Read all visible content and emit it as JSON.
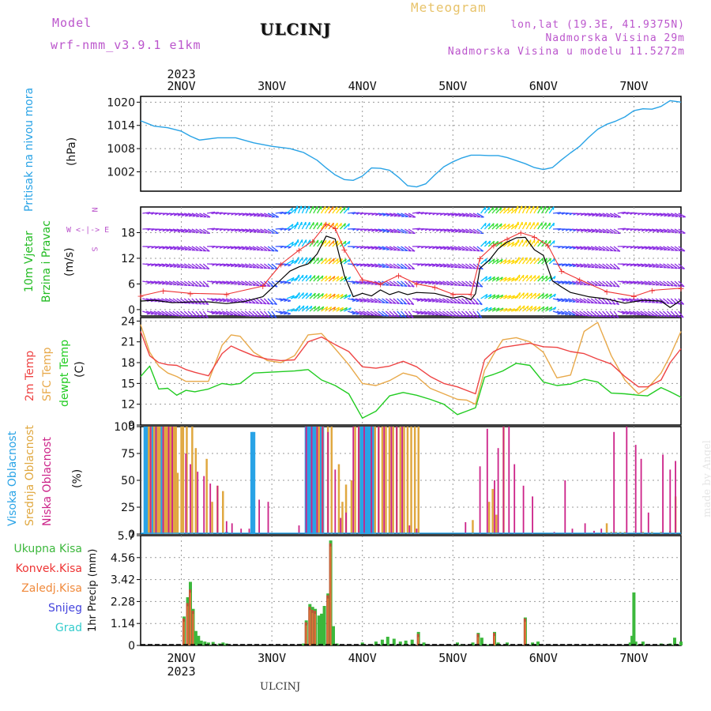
{
  "header": {
    "model_label": "Model",
    "model_name": "wrf-nmm_v3.9.1 e1km",
    "station": "ULCINJ",
    "product": "Meteogram",
    "lonlat": "lon,lat (19.3E, 41.9375N)",
    "altitude": "Nadmorska Visina 29m",
    "model_altitude": "Nadmorska Visina u modelu 11.5272m"
  },
  "footer": {
    "station": "ULCINJ",
    "credit": "made by Angel"
  },
  "colors": {
    "pressure": "#29a3e6",
    "wind_label": "#22bb22",
    "temp": "#ee4444",
    "sfc_temp": "#e8a94a",
    "dewpt": "#22cc22",
    "high_cloud": "#29a3e6",
    "mid_cloud": "#e0a840",
    "low_cloud": "#cc2288",
    "total_precip": "#3cb83c",
    "conv_precip": "#ee3333",
    "strat_precip": "#f08a3c",
    "snow": "#4444dd",
    "graupel": "#33cccc",
    "dir_legend": "#bb55cc"
  },
  "chart_data": [
    {
      "type": "line",
      "panel": "pressure",
      "ylabel_name": "Pritisak na nivou mora",
      "ylabel_unit": "(hPa)",
      "yticks": [
        "1002",
        "1008",
        "1014",
        "1020"
      ],
      "ylim": [
        997,
        1021.5
      ],
      "x_day_ticks": [
        "2NOV",
        "3NOV",
        "4NOV",
        "5NOV",
        "6NOV",
        "7NOV"
      ],
      "x_year": "2023",
      "xlim_days": [
        1.55,
        7.52
      ],
      "grid": true,
      "x": [
        1.55,
        1.7,
        1.85,
        2.0,
        2.1,
        2.2,
        2.4,
        2.6,
        2.8,
        3.0,
        3.2,
        3.35,
        3.5,
        3.6,
        3.7,
        3.8,
        3.9,
        4.0,
        4.1,
        4.2,
        4.3,
        4.4,
        4.5,
        4.6,
        4.7,
        4.8,
        4.9,
        5.0,
        5.1,
        5.2,
        5.3,
        5.4,
        5.5,
        5.6,
        5.7,
        5.8,
        5.9,
        6.0,
        6.1,
        6.2,
        6.3,
        6.4,
        6.5,
        6.6,
        6.7,
        6.8,
        6.9,
        7.0,
        7.1,
        7.2,
        7.3,
        7.4,
        7.52
      ],
      "y": [
        1015.2,
        1013.8,
        1013.4,
        1012.5,
        1011.2,
        1010.2,
        1010.8,
        1010.8,
        1009.5,
        1008.6,
        1008,
        1007,
        1005,
        1003,
        1001.2,
        1000,
        999.8,
        1000.9,
        1003,
        1002.9,
        1002.4,
        1000.6,
        998.4,
        998.1,
        998.9,
        1001.2,
        1003.3,
        1004.6,
        1005.6,
        1006.3,
        1006.3,
        1006.2,
        1006.2,
        1005.7,
        1004.9,
        1004.1,
        1003.1,
        1002.6,
        1003.1,
        1005.1,
        1006.9,
        1008.6,
        1010.9,
        1013,
        1014.3,
        1015.1,
        1016.2,
        1017.8,
        1018.3,
        1018.2,
        1018.9,
        1020.4,
        1020
      ]
    },
    {
      "type": "line",
      "panel": "wind",
      "ylabel_name": "10m Vjetar",
      "ylabel_name2": "Brzina i Pravac",
      "ylabel_unit": "(m/s)",
      "dir_legend_top": "N",
      "dir_legend_left": "W <-|-> E",
      "dir_legend_bottom": "S",
      "yticks": [
        "0",
        "6",
        "12",
        "18"
      ],
      "ylim": [
        -1.5,
        24
      ],
      "series": [
        {
          "role": "speed",
          "x": [
            1.55,
            1.7,
            1.9,
            2.1,
            2.3,
            2.5,
            2.7,
            2.9,
            3.0,
            3.1,
            3.2,
            3.3,
            3.4,
            3.5,
            3.6,
            3.7,
            3.8,
            3.9,
            4.0,
            4.1,
            4.2,
            4.3,
            4.4,
            4.5,
            4.6,
            4.8,
            5.0,
            5.1,
            5.2,
            5.25,
            5.3,
            5.4,
            5.5,
            5.6,
            5.7,
            5.8,
            5.9,
            6.0,
            6.1,
            6.2,
            6.3,
            6.5,
            6.7,
            6.9,
            7.1,
            7.3,
            7.4,
            7.52
          ],
          "y": [
            2,
            2.2,
            1.6,
            1.8,
            1.8,
            1.4,
            1.9,
            3,
            5,
            7,
            9,
            10,
            10.7,
            13,
            17.2,
            16.5,
            8,
            3,
            3.8,
            3.2,
            4.6,
            3.5,
            4.2,
            3.5,
            4,
            3.8,
            2.7,
            3.1,
            2.3,
            3.7,
            9.7,
            11.5,
            14.2,
            15.8,
            16.8,
            16.9,
            14,
            12.7,
            6.7,
            5.3,
            4,
            3,
            2.5,
            1.5,
            2.2,
            2,
            0.5,
            2.2
          ]
        },
        {
          "role": "gust",
          "x": [
            1.55,
            1.8,
            2.1,
            2.5,
            2.9,
            3.1,
            3.3,
            3.45,
            3.6,
            3.7,
            3.8,
            4.0,
            4.2,
            4.4,
            4.6,
            4.8,
            5.0,
            5.2,
            5.3,
            5.45,
            5.6,
            5.75,
            5.9,
            6.05,
            6.2,
            6.4,
            6.7,
            7.0,
            7.2,
            7.52
          ],
          "y": [
            3.2,
            4.4,
            3.8,
            3.6,
            5.5,
            10.6,
            13.9,
            16,
            20,
            19,
            14,
            7,
            6,
            8,
            6,
            5.2,
            3.6,
            3.6,
            12,
            15,
            16.5,
            18,
            17,
            15,
            9,
            7,
            4.2,
            3.1,
            4.5,
            5
          ]
        }
      ],
      "direction_note": "wind direction arrows colored by speed"
    },
    {
      "type": "line",
      "panel": "temperature",
      "labels": [
        "2m Temp",
        "SFC Temp",
        "dewpt Temp"
      ],
      "ylabel_unit": "(C)",
      "yticks": [
        "9",
        "12",
        "15",
        "18",
        "21",
        "24"
      ],
      "ylim": [
        9,
        24.5
      ],
      "x": [
        1.55,
        1.65,
        1.75,
        1.85,
        1.95,
        2.05,
        2.15,
        2.3,
        2.45,
        2.55,
        2.65,
        2.8,
        2.95,
        3.1,
        3.25,
        3.4,
        3.55,
        3.7,
        3.85,
        4.0,
        4.15,
        4.3,
        4.45,
        4.6,
        4.75,
        4.9,
        5.05,
        5.15,
        5.25,
        5.35,
        5.45,
        5.55,
        5.7,
        5.85,
        6.0,
        6.15,
        6.3,
        6.45,
        6.6,
        6.75,
        6.9,
        7.05,
        7.15,
        7.3,
        7.4,
        7.52
      ],
      "series": [
        {
          "name": "2m Temp",
          "values": [
            22.5,
            19,
            18,
            17.7,
            17.6,
            17,
            16.6,
            16.1,
            19.3,
            20.4,
            19.8,
            19,
            18.5,
            18.3,
            18.4,
            21,
            21.7,
            20.6,
            19.6,
            17.4,
            17.2,
            17.5,
            18.2,
            17.4,
            16,
            15,
            14.5,
            14,
            13.5,
            18.4,
            19.6,
            20.2,
            20.5,
            20.8,
            20.3,
            20.2,
            19.6,
            19.3,
            18.5,
            17.8,
            16,
            14.5,
            14.5,
            15.5,
            18,
            20
          ]
        },
        {
          "name": "SFC Temp",
          "values": [
            23.5,
            19.5,
            17.5,
            16.5,
            16,
            15.3,
            15.3,
            15.3,
            20.5,
            22,
            21.8,
            19.5,
            18.3,
            18,
            19,
            22,
            22.2,
            20,
            17.7,
            15,
            14.7,
            15.4,
            16.5,
            16,
            14.3,
            13.5,
            12.7,
            12.6,
            12,
            16.9,
            19.2,
            21.3,
            21.6,
            21,
            19.5,
            15.8,
            16.2,
            22.5,
            23.8,
            19,
            15.5,
            13.5,
            14.3,
            16.5,
            19,
            22.5
          ]
        },
        {
          "name": "dewpt Temp",
          "values": [
            16,
            17.5,
            14.2,
            14.3,
            13.3,
            14,
            13.8,
            14.2,
            15,
            14.8,
            15,
            16.5,
            16.6,
            16.7,
            16.8,
            17,
            15.5,
            14.7,
            13.5,
            10,
            11,
            13.2,
            13.7,
            13.3,
            12.7,
            12,
            10.5,
            11,
            11.5,
            15.9,
            16.3,
            16.8,
            17.9,
            17.6,
            15.2,
            14.7,
            14.9,
            15.6,
            15.2,
            13.6,
            13.5,
            13.3,
            13.2,
            14.4,
            13.8,
            13
          ]
        }
      ]
    },
    {
      "type": "bar",
      "panel": "cloud",
      "labels": [
        "Visoka Oblacnost",
        "Srednja Oblacnost",
        "Niska Oblacnost"
      ],
      "ylabel_unit": "(%)",
      "yticks": [
        "0",
        "25",
        "50",
        "75",
        "100"
      ],
      "ylim": [
        0,
        100
      ],
      "series": [
        {
          "name": "Visoka Oblacnost",
          "x": [
            1.6,
            1.62,
            1.68,
            1.72,
            1.78,
            2.5,
            2.78,
            2.8,
            3.38,
            3.4,
            3.42,
            3.44,
            3.46,
            3.48,
            3.5,
            3.52,
            3.54,
            3.56,
            3.98,
            4.0,
            4.02,
            4.04,
            4.06,
            4.08,
            4.1,
            4.12
          ],
          "values": [
            100,
            100,
            100,
            100,
            100,
            2,
            95,
            95,
            100,
            100,
            100,
            100,
            100,
            100,
            100,
            100,
            100,
            100,
            100,
            100,
            100,
            100,
            100,
            100,
            100,
            100
          ]
        },
        {
          "name": "Srednja Oblacnost",
          "x": [
            1.64,
            1.66,
            1.7,
            1.74,
            1.76,
            1.8,
            1.82,
            1.84,
            1.86,
            1.88,
            1.9,
            1.92,
            1.94,
            1.96,
            2.0,
            2.02,
            2.06,
            2.12,
            2.16,
            2.28,
            2.34,
            2.4,
            2.46,
            3.5,
            3.52,
            3.56,
            3.62,
            3.66,
            3.74,
            3.78,
            3.82,
            3.88,
            3.92,
            3.96,
            4.14,
            4.18,
            4.22,
            4.26,
            4.3,
            4.34,
            4.38,
            4.42,
            4.46,
            4.5,
            4.54,
            4.58,
            4.62,
            5.22,
            5.4,
            5.44,
            5.48,
            5.56,
            6.7,
            6.75,
            6.8,
            6.85,
            6.9,
            7.1,
            7.2,
            7.3,
            7.4,
            7.46
          ],
          "values": [
            100,
            100,
            100,
            100,
            100,
            100,
            100,
            100,
            100,
            100,
            100,
            100,
            100,
            57,
            100,
            100,
            100,
            100,
            80,
            70,
            30,
            45,
            40,
            100,
            100,
            100,
            100,
            100,
            65,
            30,
            46,
            50,
            100,
            100,
            100,
            100,
            100,
            100,
            100,
            100,
            100,
            100,
            100,
            100,
            100,
            100,
            100,
            13,
            30,
            42,
            18,
            100,
            10,
            2,
            2,
            2,
            2,
            2,
            2,
            2,
            3,
            35
          ]
        },
        {
          "name": "Niska Oblacnost",
          "x": [
            1.66,
            1.72,
            1.8,
            1.86,
            1.9,
            2.05,
            2.1,
            2.18,
            2.25,
            2.32,
            2.4,
            2.5,
            2.56,
            2.66,
            2.75,
            2.86,
            2.96,
            3.3,
            3.38,
            3.44,
            3.5,
            3.56,
            3.62,
            3.7,
            3.76,
            3.82,
            3.9,
            3.96,
            4.02,
            4.1,
            4.18,
            4.24,
            4.32,
            4.38,
            4.44,
            4.52,
            4.6,
            5.14,
            5.3,
            5.38,
            5.46,
            5.5,
            5.56,
            5.62,
            5.68,
            5.78,
            5.88,
            6.12,
            6.24,
            6.32,
            6.46,
            6.56,
            6.64,
            6.78,
            6.92,
            7.02,
            7.08,
            7.16,
            7.32,
            7.4,
            7.46
          ],
          "values": [
            100,
            100,
            100,
            100,
            100,
            75,
            65,
            58,
            54,
            47,
            45,
            12,
            10,
            5,
            5,
            32,
            30,
            8,
            100,
            100,
            100,
            100,
            95,
            60,
            15,
            20,
            100,
            100,
            100,
            100,
            100,
            100,
            100,
            100,
            100,
            8,
            5,
            11,
            63,
            98,
            50,
            80,
            100,
            100,
            65,
            45,
            35,
            2,
            50,
            5,
            10,
            3,
            5,
            95,
            100,
            83,
            70,
            20,
            74,
            60,
            68
          ]
        }
      ]
    },
    {
      "type": "bar",
      "panel": "precip",
      "labels": [
        "Ukupna Kisa",
        "Konvek.Kisa",
        "Zaledj.Kisa",
        "Snijeg",
        "Grad"
      ],
      "ylabel_unit": "1hr Precip (mm)",
      "yticks": [
        "0",
        "1.14",
        "2.28",
        "3.42",
        "4.56",
        "5.7"
      ],
      "ylim": [
        0,
        5.7
      ],
      "series": [
        {
          "name": "Ukupna Kisa",
          "x": [
            2.03,
            2.07,
            2.1,
            2.13,
            2.16,
            2.19,
            2.22,
            2.26,
            2.3,
            2.35,
            2.42,
            2.46,
            2.5,
            3.35,
            3.38,
            3.42,
            3.45,
            3.48,
            3.52,
            3.55,
            3.58,
            3.62,
            3.65,
            3.68,
            3.72,
            4.0,
            4.15,
            4.22,
            4.28,
            4.35,
            4.42,
            4.48,
            4.55,
            4.62,
            4.68,
            5.05,
            5.1,
            5.22,
            5.28,
            5.32,
            5.38,
            5.42,
            5.46,
            5.5,
            5.6,
            5.8,
            5.88,
            5.94,
            6.96,
            6.98,
            7.0,
            7.02,
            7.1,
            7.3,
            7.4,
            7.45,
            7.52
          ],
          "values": [
            1.5,
            2.5,
            3.3,
            1.9,
            0.75,
            0.5,
            0.25,
            0.2,
            0.15,
            0.18,
            0.1,
            0.15,
            0.1,
            0.1,
            1.3,
            2.15,
            2.0,
            1.9,
            1.55,
            1.65,
            2.05,
            2.7,
            5.45,
            1.0,
            0.1,
            0.15,
            0.2,
            0.3,
            0.45,
            0.35,
            0.2,
            0.25,
            0.3,
            0.7,
            0.15,
            0.15,
            0.05,
            0.15,
            0.65,
            0.4,
            0.05,
            0.05,
            0.7,
            0.15,
            0.15,
            1.45,
            0.15,
            0.2,
            0.15,
            0.5,
            2.75,
            0.2,
            0.2,
            0.1,
            0.1,
            0.4,
            0.2
          ]
        },
        {
          "name": "Konvek.Kisa",
          "x": [
            2.03,
            2.07,
            2.1,
            2.13,
            3.38,
            3.42,
            3.45,
            3.48,
            3.62,
            3.65,
            4.62,
            5.28,
            5.46,
            5.8
          ],
          "values": [
            1.4,
            2.2,
            2.9,
            1.8,
            1.2,
            2.0,
            1.85,
            1.8,
            2.6,
            5.3,
            0.6,
            0.6,
            0.65,
            1.4
          ]
        }
      ]
    }
  ]
}
